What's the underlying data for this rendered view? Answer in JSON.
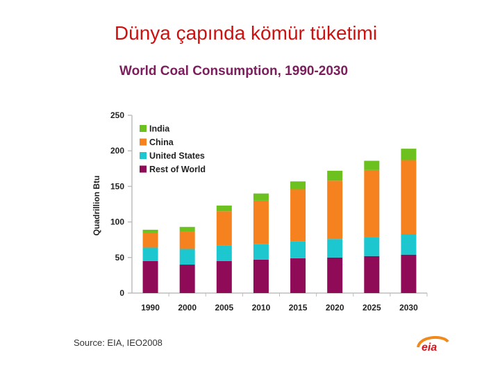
{
  "slide": {
    "title": "Dünya çapında kömür tüketimi",
    "source": "Source:  EIA, IEO2008",
    "logo_text": "eia"
  },
  "colors": {
    "india": "#6cc11f",
    "china": "#f5821f",
    "united_states": "#1cc7cf",
    "rest_of_world": "#8f0a57",
    "axis": "#bdbdbd",
    "title": "#7a1f5c",
    "slide_title": "#cc1111"
  },
  "chart_data": {
    "type": "bar",
    "stacked": true,
    "title": "World Coal Consumption, 1990-2030",
    "xlabel": "",
    "ylabel": "Quadrillion Btu",
    "ylim": [
      0,
      250
    ],
    "yticks": [
      0,
      50,
      100,
      150,
      200,
      250
    ],
    "grid": false,
    "legend_position": "top-left",
    "categories": [
      "1990",
      "2000",
      "2005",
      "2010",
      "2015",
      "2020",
      "2025",
      "2030"
    ],
    "series": [
      {
        "name": "Rest of World",
        "color": "#8f0a57",
        "values": [
          45,
          40,
          45,
          47,
          49,
          50,
          52,
          54
        ]
      },
      {
        "name": "United States",
        "color": "#1cc7cf",
        "values": [
          19,
          22,
          22,
          22,
          24,
          26,
          27,
          29
        ]
      },
      {
        "name": "China",
        "color": "#f5821f",
        "values": [
          21,
          24,
          48,
          61,
          73,
          82,
          94,
          104
        ]
      },
      {
        "name": "India",
        "color": "#6cc11f",
        "values": [
          4,
          7,
          8,
          10,
          11,
          14,
          13,
          16
        ]
      }
    ],
    "legend_order": [
      "India",
      "China",
      "United States",
      "Rest of World"
    ]
  }
}
